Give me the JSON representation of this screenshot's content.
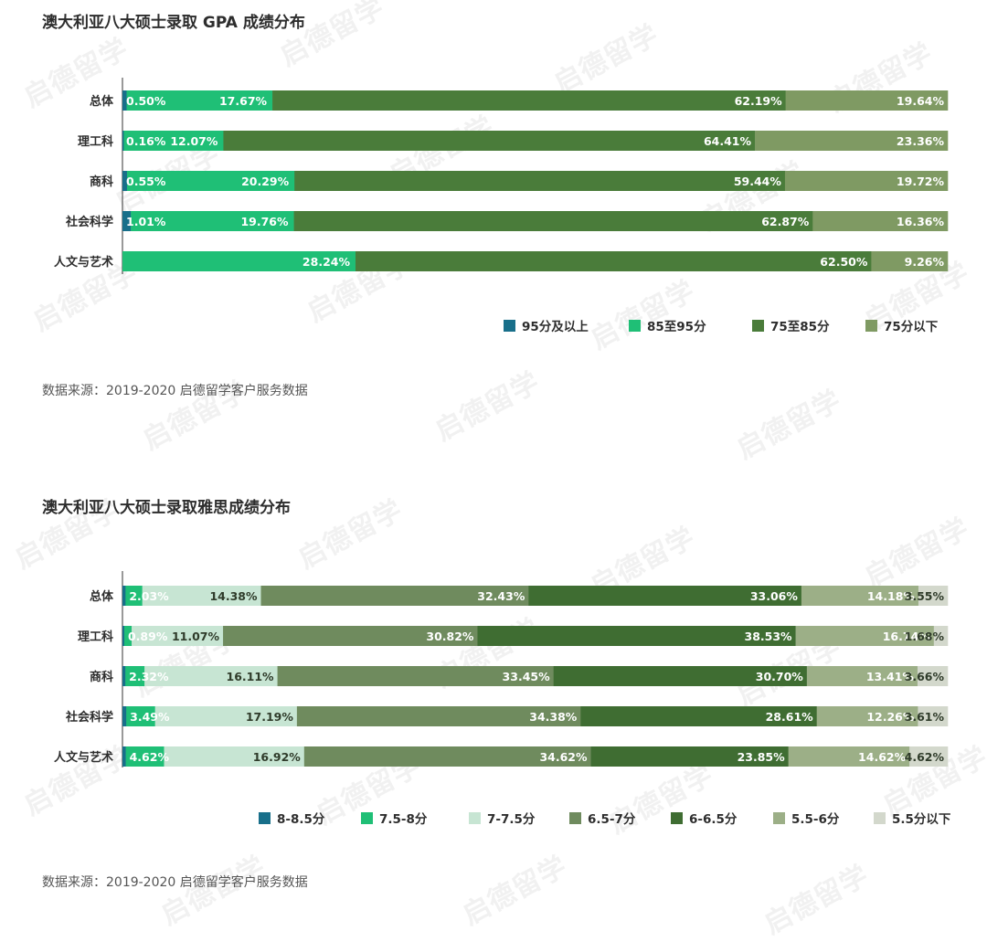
{
  "charts": [
    {
      "title": "澳大利亚八大硕士录取 GPA 成绩分布",
      "source": "数据来源：2019-2020 启德留学客户服务数据"
    },
    {
      "title": "澳大利亚八大硕士录取雅思成绩分布",
      "source": "数据来源：2019-2020 启德留学客户服务数据"
    }
  ],
  "watermark": "启德留学",
  "chart_data": [
    {
      "type": "bar",
      "stacked": true,
      "orientation": "horizontal",
      "title": "澳大利亚八大硕士录取 GPA 成绩分布",
      "categories": [
        "总体",
        "理工科",
        "商科",
        "社会科学",
        "人文与艺术"
      ],
      "unit": "%",
      "series": [
        {
          "name": "95分及以上",
          "color": "#186f8a",
          "values": [
            0.5,
            0.16,
            0.55,
            1.01,
            0
          ],
          "labels": [
            "0.50%",
            "0.16%",
            "0.55%",
            "1.01%",
            ""
          ]
        },
        {
          "name": "85至95分",
          "color": "#1fbf76",
          "values": [
            17.67,
            12.07,
            20.29,
            19.76,
            28.24
          ],
          "labels": [
            "17.67%",
            "12.07%",
            "20.29%",
            "19.76%",
            "28.24%"
          ]
        },
        {
          "name": "75至85分",
          "color": "#4a7c3a",
          "values": [
            62.19,
            64.41,
            59.44,
            62.87,
            62.5
          ],
          "labels": [
            "62.19%",
            "64.41%",
            "59.44%",
            "62.87%",
            "62.50%"
          ]
        },
        {
          "name": "75分以下",
          "color": "#7f9a63",
          "values": [
            19.64,
            23.36,
            19.72,
            16.36,
            9.26
          ],
          "labels": [
            "19.64%",
            "23.36%",
            "19.72%",
            "16.36%",
            "9.26%"
          ]
        }
      ],
      "legend_position": "bottom-right"
    },
    {
      "type": "bar",
      "stacked": true,
      "orientation": "horizontal",
      "title": "澳大利亚八大硕士录取雅思成绩分布",
      "categories": [
        "总体",
        "理工科",
        "商科",
        "社会科学",
        "人文与艺术"
      ],
      "unit": "%",
      "series": [
        {
          "name": "8-8.5分",
          "color": "#186f8a",
          "values": [
            0.37,
            0.22,
            0.35,
            0.46,
            0.4
          ],
          "labels": [
            "",
            "",
            "",
            "",
            ""
          ]
        },
        {
          "name": "7.5-8分",
          "color": "#1fbf76",
          "values": [
            2.03,
            0.89,
            2.32,
            3.49,
            4.62
          ],
          "labels": [
            "2.03%",
            "0.89%",
            "2.32%",
            "3.49%",
            "4.62%"
          ]
        },
        {
          "name": "7-7.5分",
          "color": "#c7e5d3",
          "values": [
            14.38,
            11.07,
            16.11,
            17.19,
            16.92
          ],
          "labels": [
            "14.38%",
            "11.07%",
            "16.11%",
            "17.19%",
            "16.92%"
          ]
        },
        {
          "name": "6.5-7分",
          "color": "#6f8b5e",
          "values": [
            32.43,
            30.82,
            33.45,
            34.38,
            34.62
          ],
          "labels": [
            "32.43%",
            "30.82%",
            "33.45%",
            "34.38%",
            "34.62%"
          ]
        },
        {
          "name": "6-6.5分",
          "color": "#3f6d32",
          "values": [
            33.06,
            38.53,
            30.7,
            28.61,
            23.85
          ],
          "labels": [
            "33.06%",
            "38.53%",
            "30.70%",
            "28.61%",
            "23.85%"
          ]
        },
        {
          "name": "5.5-6分",
          "color": "#9caf87",
          "values": [
            14.18,
            16.74,
            13.41,
            12.26,
            14.62
          ],
          "labels": [
            "14.18%",
            "16.74%",
            "13.41%",
            "12.26%",
            "14.62%"
          ]
        },
        {
          "name": "5.5分以下",
          "color": "#d3d8cc",
          "values": [
            3.55,
            1.68,
            3.66,
            3.61,
            4.62
          ],
          "labels": [
            "3.55%",
            "1.68%",
            "3.66%",
            "3.61%",
            "4.62%"
          ]
        }
      ],
      "legend_position": "bottom-center"
    }
  ]
}
